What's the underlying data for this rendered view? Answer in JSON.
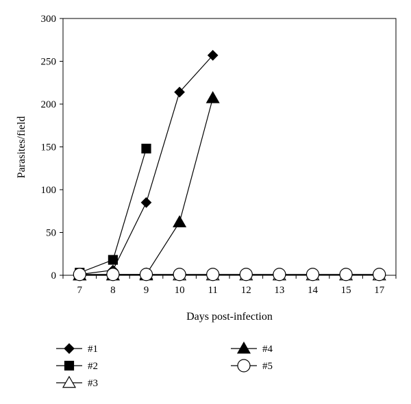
{
  "chart_data": {
    "type": "line",
    "title": "",
    "xlabel": "Days post-infection",
    "ylabel": "Parasites/field",
    "categories": [
      "7",
      "8",
      "9",
      "10",
      "11",
      "12",
      "13",
      "14",
      "15",
      "17"
    ],
    "ylim": [
      0,
      300
    ],
    "yticks": [
      0,
      50,
      100,
      150,
      200,
      250,
      300
    ],
    "grid": false,
    "legend_position": "bottom",
    "series": [
      {
        "name": "#1",
        "marker": "diamond-filled",
        "values": [
          1,
          6,
          85,
          214,
          257,
          null,
          null,
          null,
          null,
          null
        ]
      },
      {
        "name": "#2",
        "marker": "square-filled",
        "values": [
          3,
          18,
          148,
          null,
          null,
          null,
          null,
          null,
          null,
          null
        ]
      },
      {
        "name": "#3",
        "marker": "triangle-open",
        "values": [
          0,
          0,
          0,
          0,
          0,
          0,
          0,
          0,
          0,
          0
        ]
      },
      {
        "name": "#4",
        "marker": "triangle-filled",
        "values": [
          0,
          0,
          1,
          62,
          207,
          null,
          null,
          null,
          null,
          null
        ]
      },
      {
        "name": "#5",
        "marker": "circle-open",
        "values": [
          1,
          1,
          1,
          1,
          1,
          1,
          1,
          1,
          1,
          1
        ]
      }
    ]
  }
}
